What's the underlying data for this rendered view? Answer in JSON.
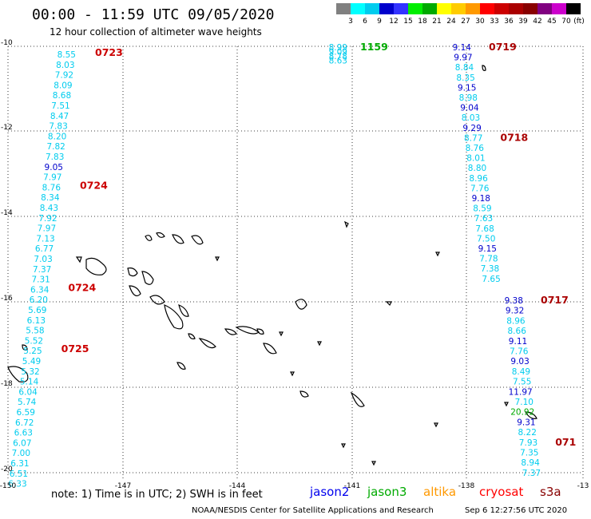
{
  "title": "00:00 - 11:59 UTC 09/05/2020",
  "subtitle": "12 hour collection of altimeter wave heights",
  "colorbar": {
    "unit": "(ft)",
    "colors": [
      "#808080",
      "#00ffff",
      "#00ccee",
      "#0000cc",
      "#3333ff",
      "#00ee00",
      "#00aa00",
      "#ffff00",
      "#ffcc00",
      "#ff9900",
      "#ff0000",
      "#cc0000",
      "#aa0000",
      "#880000",
      "#800080",
      "#cc00cc",
      "#000000"
    ],
    "labels": [
      "3",
      "6",
      "9",
      "12",
      "15",
      "18",
      "21",
      "24",
      "27",
      "30",
      "33",
      "36",
      "39",
      "42",
      "45",
      "70"
    ]
  },
  "axes": {
    "lon_ticks": [
      "-150",
      "-147",
      "-144",
      "-141",
      "-138",
      "-13"
    ],
    "lat_ticks": [
      "-10",
      "-12",
      "-14",
      "-16",
      "-18",
      "-20"
    ]
  },
  "note": "note: 1) Time is in UTC; 2) SWH is in feet",
  "satellites": [
    {
      "name": "jason2",
      "color": "#0000ee"
    },
    {
      "name": "jason3",
      "color": "#00aa00"
    },
    {
      "name": "altika",
      "color": "#ff9900"
    },
    {
      "name": "cryosat",
      "color": "#ff0000"
    },
    {
      "name": "s3a",
      "color": "#880000"
    }
  ],
  "credit": "NOAA/NESDIS Center for Satellite Applications and Research",
  "timestamp": "Sep  6 12:27:56 UTC 2020",
  "tracks": [
    {
      "values": [
        "8.55",
        "8.03",
        "7.92",
        "8.09",
        "8.68",
        "7.51",
        "8.47",
        "7.83",
        "8.20",
        "7.82",
        "7.83",
        "9.05",
        "7.97",
        "8.76",
        "8.34",
        "8.43",
        "7.92",
        "7.97",
        "7.13",
        "6.77",
        "7.03",
        "7.37",
        "7.31",
        "6.34",
        "6.20",
        "5.69",
        "6.13",
        "5.58",
        "5.52",
        "5.25",
        "5.49",
        "5.32",
        "5.14",
        "6.04",
        "5.74",
        "6.59",
        "6.72",
        "6.63",
        "6.07",
        "7.00",
        "6.31",
        "6.51",
        "6.33"
      ],
      "colors": [
        "c",
        "c",
        "c",
        "c",
        "c",
        "c",
        "c",
        "c",
        "c",
        "c",
        "c",
        "b",
        "c",
        "c",
        "c",
        "c",
        "c",
        "c",
        "c",
        "c",
        "c",
        "c",
        "c",
        "c",
        "c",
        "c",
        "c",
        "c",
        "c",
        "c",
        "c",
        "c",
        "c",
        "c",
        "c",
        "c",
        "c",
        "c",
        "c",
        "c",
        "c",
        "c",
        "c"
      ],
      "times": [
        {
          "label": "0723",
          "index": 0,
          "color": "#cc0000"
        },
        {
          "label": "0724",
          "index": 13,
          "color": "#cc0000"
        },
        {
          "label": "0724",
          "index": 23,
          "color": "#cc0000"
        },
        {
          "label": "0725",
          "index": 29,
          "color": "#cc0000"
        }
      ]
    },
    {
      "values": [
        "8.99",
        "9.09",
        "8.78",
        "8.63"
      ],
      "colors": [
        "c",
        "c",
        "c",
        "c"
      ],
      "times": [
        {
          "label": "1159",
          "index": 0,
          "color": "#00aa00"
        }
      ]
    },
    {
      "values": [
        "9.14",
        "9.97",
        "8.84",
        "8.35",
        "9.15",
        "8.98",
        "9.04",
        "8.03",
        "9.29",
        "8.77",
        "8.76",
        "8.01",
        "8.80",
        "8.96",
        "7.76",
        "9.18",
        "8.59",
        "7.63",
        "7.68",
        "7.50",
        "9.15",
        "7.78",
        "7.38",
        "7.65"
      ],
      "colors": [
        "b",
        "b",
        "c",
        "c",
        "b",
        "c",
        "b",
        "c",
        "b",
        "c",
        "c",
        "c",
        "c",
        "c",
        "c",
        "b",
        "c",
        "c",
        "c",
        "c",
        "b",
        "c",
        "c",
        "c"
      ],
      "times": [
        {
          "label": "0719",
          "index": 0,
          "color": "#aa0000"
        },
        {
          "label": "0718",
          "index": 9,
          "color": "#aa0000"
        }
      ]
    },
    {
      "values": [
        "9.38",
        "9.32",
        "8.96",
        "8.66",
        "9.11",
        "7.76",
        "9.03",
        "8.49",
        "7.55",
        "11.97",
        "7.10",
        "20.92",
        "9.31",
        "8.22",
        "7.93",
        "7.35",
        "8.94",
        "7.37"
      ],
      "colors": [
        "b",
        "b",
        "c",
        "c",
        "b",
        "c",
        "b",
        "c",
        "c",
        "b",
        "c",
        "g",
        "b",
        "c",
        "c",
        "c",
        "c",
        "c"
      ],
      "times": [
        {
          "label": "0717",
          "index": 0,
          "color": "#aa0000"
        },
        {
          "label": "071",
          "index": 14,
          "color": "#aa0000"
        }
      ]
    }
  ]
}
